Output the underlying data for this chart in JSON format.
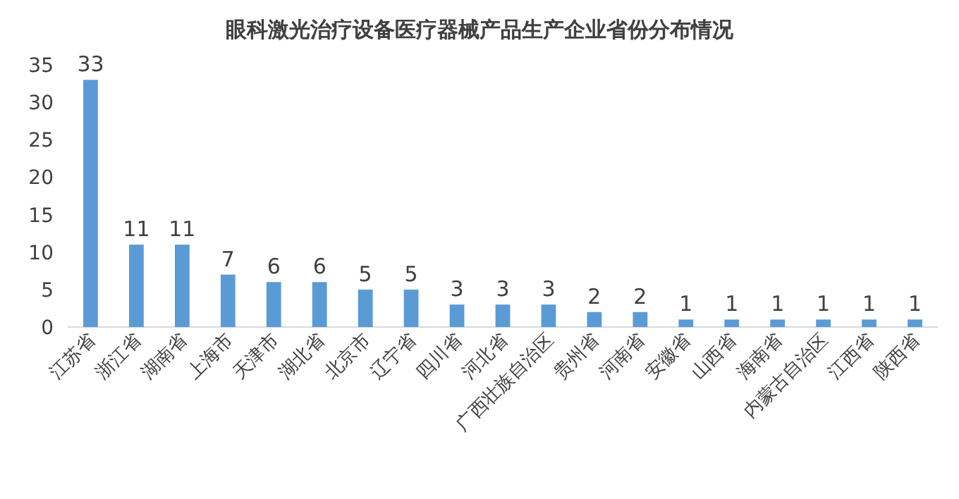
{
  "chart_data": {
    "type": "bar",
    "title": "眼科激光治疗设备医疗器械产品生产企业省份分布情况",
    "categories": [
      "江苏省",
      "浙江省",
      "湖南省",
      "上海市",
      "天津市",
      "湖北省",
      "北京市",
      "辽宁省",
      "四川省",
      "河北省",
      "广西壮族自治区",
      "贵州省",
      "河南省",
      "安徽省",
      "山西省",
      "海南省",
      "内蒙古自治区",
      "江西省",
      "陕西省"
    ],
    "values": [
      33,
      11,
      11,
      7,
      6,
      6,
      5,
      5,
      3,
      3,
      3,
      2,
      2,
      1,
      1,
      1,
      1,
      1,
      1
    ],
    "color": "#5b9bd5",
    "ylim": [
      0,
      35
    ],
    "yticks": [
      0,
      5,
      10,
      15,
      20,
      25,
      30,
      35
    ],
    "grid": false,
    "data_labels": true
  }
}
